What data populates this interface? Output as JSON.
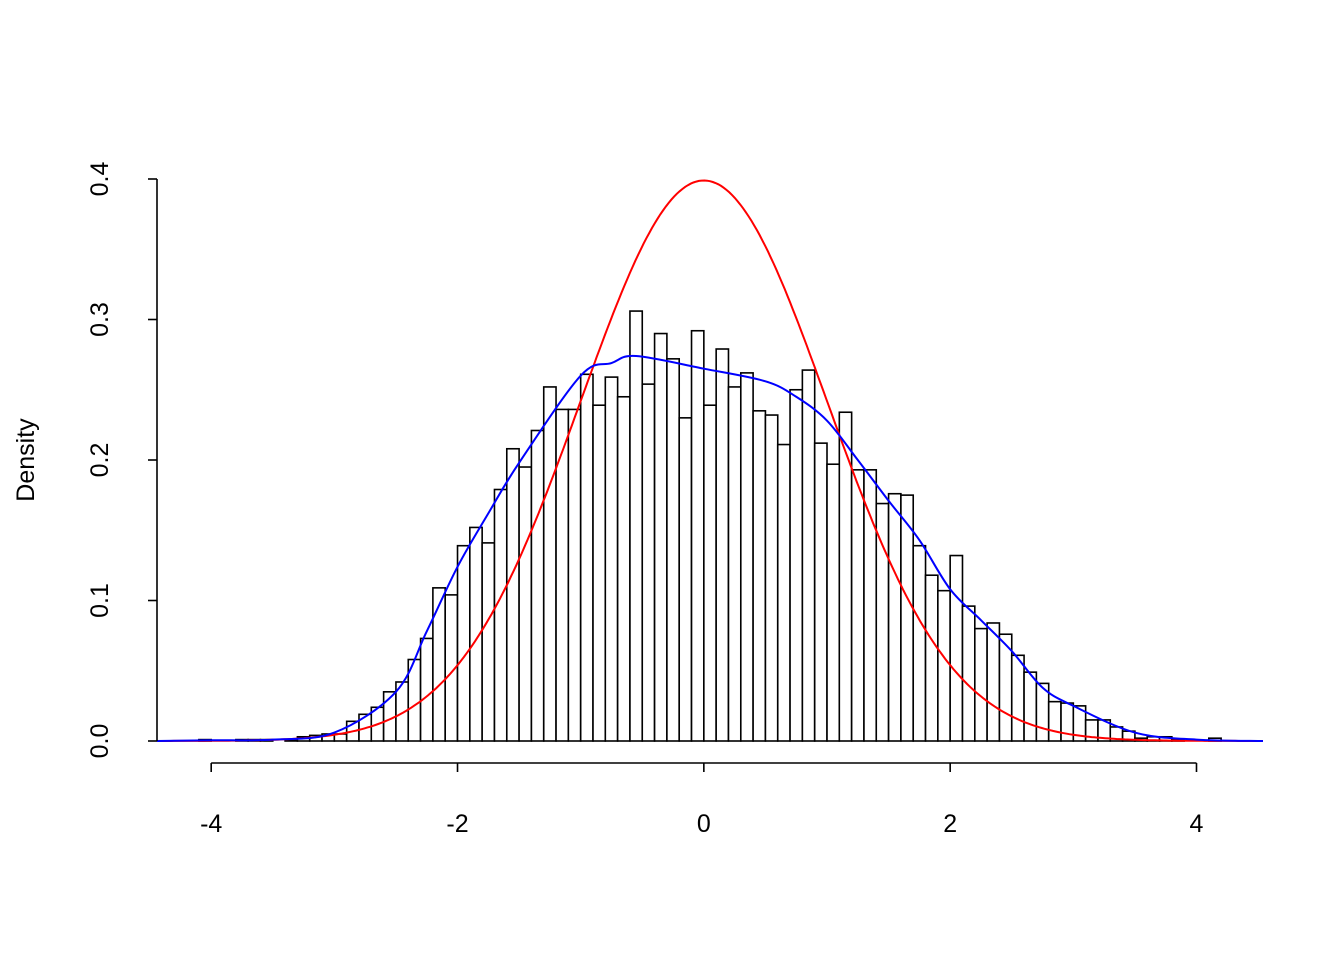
{
  "chart_data": {
    "type": "bar",
    "subtype": "histogram-with-density-curves",
    "title": "",
    "xlabel": "",
    "ylabel": "Density",
    "xlim": [
      -4.44,
      4.54
    ],
    "ylim": [
      0,
      0.4
    ],
    "x_ticks": [
      -4,
      -2,
      0,
      2,
      4
    ],
    "x_tick_labels": [
      "-4",
      "-2",
      "0",
      "2",
      "4"
    ],
    "y_ticks": [
      0,
      0.1,
      0.2,
      0.3,
      0.4
    ],
    "y_tick_labels": [
      "0.0",
      "0.1",
      "0.2",
      "0.3",
      "0.4"
    ],
    "grid": false,
    "histogram": {
      "first_break": -4.2,
      "bin_width": 0.1,
      "density": [
        0,
        0.001,
        0,
        0,
        0.001,
        0.001,
        0.001,
        0,
        0.001,
        0.003,
        0.004,
        0.005,
        0.005,
        0.014,
        0.019,
        0.024,
        0.035,
        0.042,
        0.058,
        0.073,
        0.109,
        0.104,
        0.139,
        0.152,
        0.141,
        0.179,
        0.208,
        0.195,
        0.221,
        0.252,
        0.236,
        0.236,
        0.261,
        0.239,
        0.259,
        0.245,
        0.306,
        0.254,
        0.29,
        0.272,
        0.23,
        0.292,
        0.239,
        0.279,
        0.252,
        0.262,
        0.235,
        0.232,
        0.211,
        0.25,
        0.264,
        0.212,
        0.197,
        0.234,
        0.193,
        0.193,
        0.169,
        0.176,
        0.175,
        0.139,
        0.118,
        0.107,
        0.132,
        0.096,
        0.08,
        0.084,
        0.076,
        0.061,
        0.049,
        0.041,
        0.028,
        0.027,
        0.025,
        0.015,
        0.015,
        0.01,
        0.007,
        0.002,
        0.003,
        0.003,
        0.001,
        0,
        0,
        0.002
      ],
      "fill": "#ffffff",
      "border": "#000000"
    },
    "curves": [
      {
        "kind": "normal-pdf",
        "mean": 0,
        "sd": 1,
        "color": "#ff0000"
      },
      {
        "kind": "kernel-density",
        "color": "#0000ff",
        "x": [
          -4.44,
          -4.0,
          -3.5,
          -3.0,
          -2.5,
          -2.25,
          -2.0,
          -1.75,
          -1.5,
          -1.0,
          -0.75,
          -0.55,
          0.0,
          0.5,
          0.75,
          1.0,
          1.25,
          1.5,
          1.75,
          2.0,
          2.25,
          2.5,
          2.75,
          3.0,
          3.5,
          4.0,
          4.54
        ],
        "y": [
          0.0,
          0.0005,
          0.001,
          0.006,
          0.035,
          0.078,
          0.124,
          0.162,
          0.198,
          0.26,
          0.269,
          0.274,
          0.265,
          0.256,
          0.245,
          0.228,
          0.2,
          0.171,
          0.143,
          0.108,
          0.086,
          0.064,
          0.038,
          0.025,
          0.006,
          0.001,
          0.0
        ]
      }
    ]
  }
}
